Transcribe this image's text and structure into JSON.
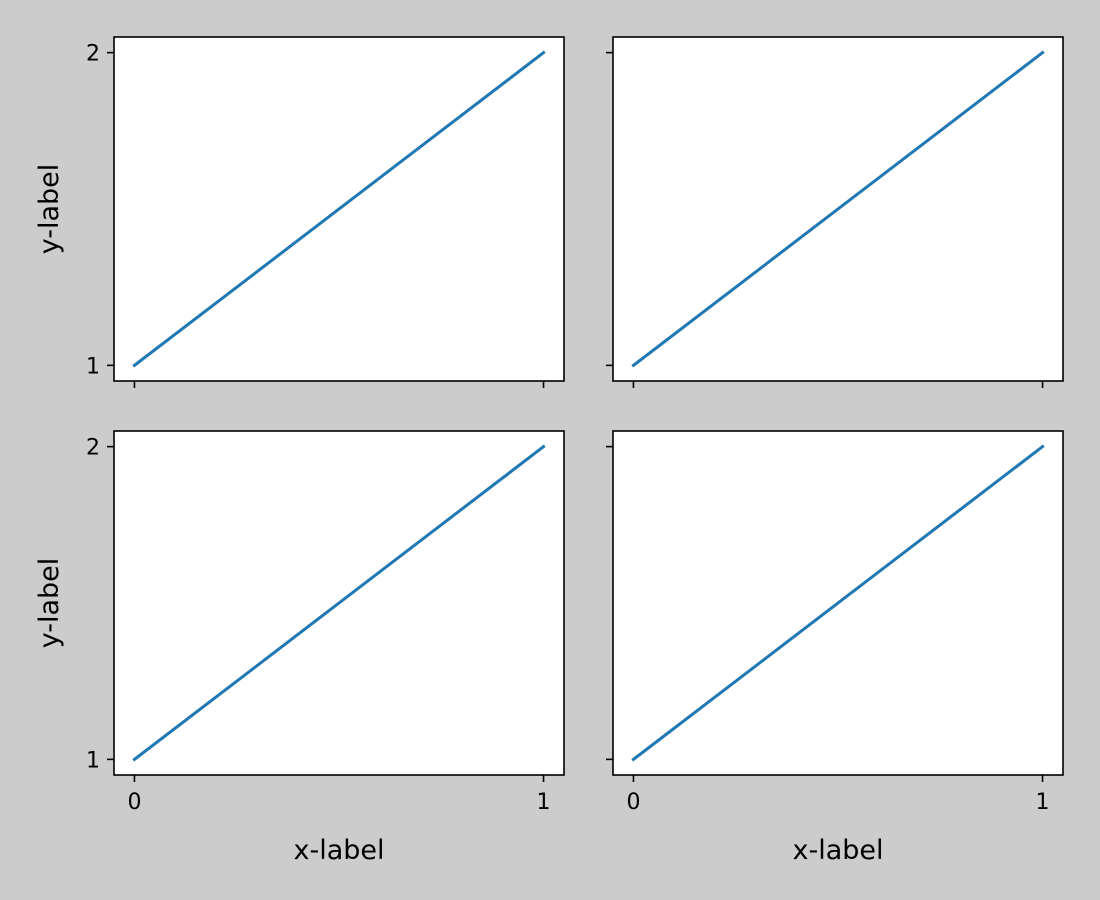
{
  "figure": {
    "background": "#cccccc",
    "axes_background": "#ffffff",
    "line_color": "#1f77b4"
  },
  "chart_data": [
    {
      "type": "line",
      "series": [
        {
          "x": [
            0,
            1
          ],
          "y": [
            1,
            2
          ]
        }
      ],
      "xlim": [
        -0.05,
        1.05
      ],
      "ylim": [
        0.95,
        2.05
      ],
      "x_ticks": [
        0,
        1
      ],
      "y_ticks": [
        1,
        2
      ],
      "x_tick_labels": [],
      "y_tick_labels": [
        "1",
        "2"
      ],
      "xlabel": "",
      "ylabel": "y-label",
      "grid": false
    },
    {
      "type": "line",
      "series": [
        {
          "x": [
            0,
            1
          ],
          "y": [
            1,
            2
          ]
        }
      ],
      "xlim": [
        -0.05,
        1.05
      ],
      "ylim": [
        0.95,
        2.05
      ],
      "x_ticks": [
        0,
        1
      ],
      "y_ticks": [
        1,
        2
      ],
      "x_tick_labels": [],
      "y_tick_labels": [],
      "xlabel": "",
      "ylabel": "",
      "grid": false
    },
    {
      "type": "line",
      "series": [
        {
          "x": [
            0,
            1
          ],
          "y": [
            1,
            2
          ]
        }
      ],
      "xlim": [
        -0.05,
        1.05
      ],
      "ylim": [
        0.95,
        2.05
      ],
      "x_ticks": [
        0,
        1
      ],
      "y_ticks": [
        1,
        2
      ],
      "x_tick_labels": [
        "0",
        "1"
      ],
      "y_tick_labels": [
        "1",
        "2"
      ],
      "xlabel": "x-label",
      "ylabel": "y-label",
      "grid": false
    },
    {
      "type": "line",
      "series": [
        {
          "x": [
            0,
            1
          ],
          "y": [
            1,
            2
          ]
        }
      ],
      "xlim": [
        -0.05,
        1.05
      ],
      "ylim": [
        0.95,
        2.05
      ],
      "x_ticks": [
        0,
        1
      ],
      "y_ticks": [
        1,
        2
      ],
      "x_tick_labels": [
        "0",
        "1"
      ],
      "y_tick_labels": [],
      "xlabel": "x-label",
      "ylabel": "",
      "grid": false
    }
  ]
}
